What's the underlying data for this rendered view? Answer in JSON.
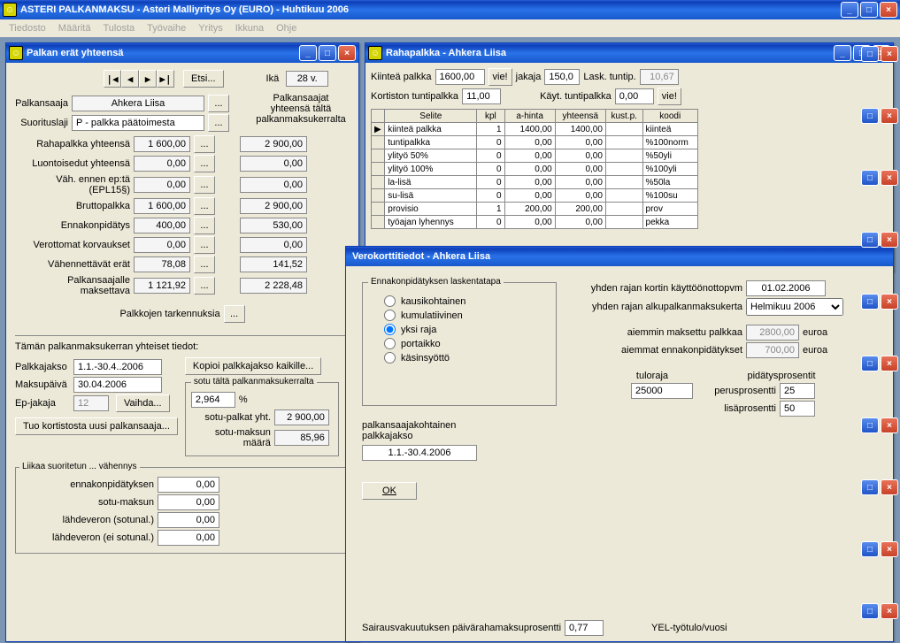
{
  "app": {
    "title": "ASTERI PALKANMAKSU - Asteri Malliyritys Oy (EURO) - Huhtikuu 2006",
    "menu": [
      "Tiedosto",
      "Määritä",
      "Tulosta",
      "Työvaihe",
      "Yritys",
      "Ikkuna",
      "Ohje"
    ]
  },
  "win1": {
    "title": "Palkan erät yhteensä",
    "etsi": "Etsi...",
    "ika_label": "Ikä",
    "ika_value": "28 v.",
    "palkansaaja_label": "Palkansaaja",
    "palkansaaja_value": "Ahkera Liisa",
    "suorituslaji_label": "Suorituslaji",
    "suorituslaji_value": "P    - palkka päätoimesta",
    "col2_header1": "Palkansaajat",
    "col2_header2": "yhteensä tältä",
    "col2_header3": "palkanmaksukerralta",
    "rows": [
      {
        "label": "Rahapalkka yhteensä",
        "v1": "1 600,00",
        "v2": "2 900,00"
      },
      {
        "label": "Luontoisedut yhteensä",
        "v1": "0,00",
        "v2": "0,00"
      },
      {
        "label": "Väh. ennen ep:tä (EPL15§)",
        "v1": "0,00",
        "v2": "0,00"
      },
      {
        "label": "Bruttopalkka",
        "v1": "1 600,00",
        "v2": "2 900,00"
      },
      {
        "label": "Ennakonpidätys",
        "v1": "400,00",
        "v2": "530,00"
      },
      {
        "label": "Verottomat korvaukset",
        "v1": "0,00",
        "v2": "0,00"
      },
      {
        "label": "Vähennettävät erät",
        "v1": "78,08",
        "v2": "141,52"
      },
      {
        "label": "Palkansaajalle maksettava",
        "v1": "1 121,92",
        "v2": "2 228,48"
      }
    ],
    "palkkojen_tarkennuksia": "Palkkojen tarkennuksia",
    "taman_header": "Tämän palkanmaksukerran yhteiset tiedot:",
    "palkkajakso_label": "Palkkajakso",
    "palkkajakso_value": "1.1.-30.4..2006",
    "kopioi": "Kopioi palkkajakso kaikille...",
    "maksupaiva_label": "Maksupäivä",
    "maksupaiva_value": "30.04.2006",
    "epjakaja_label": "Ep-jakaja",
    "epjakaja_value": "12",
    "vaihda": "Vaihda...",
    "tuo_kortistosta": "Tuo kortistosta uusi palkansaaja...",
    "sotu_group_title": "sotu tältä palkanmaksukerralta",
    "sotu_pct": "2,964",
    "pct_sign": "%",
    "sotu_palkat_label": "sotu-palkat yht.",
    "sotu_palkat_value": "2 900,00",
    "sotu_maksun_label": "sotu-maksun määrä",
    "sotu_maksun_value": "85,96",
    "liikaa_title": "Liikaa suoritetun ... vähennys",
    "liikaa_rows": [
      {
        "label": "ennakonpidätyksen",
        "v": "0,00"
      },
      {
        "label": "sotu-maksun",
        "v": "0,00"
      },
      {
        "label": "lähdeveron (sotunal.)",
        "v": "0,00"
      },
      {
        "label": "lähdeveron (ei sotunal.)",
        "v": "0,00"
      }
    ]
  },
  "win2": {
    "title": "Rahapalkka - Ahkera Liisa",
    "kiintea_label": "Kiinteä palkka",
    "kiintea_value": "1600,00",
    "vie": "vie!",
    "jakaja_label": "jakaja",
    "jakaja_value": "150,0",
    "lask_label": "Lask. tuntip.",
    "lask_value": "10,67",
    "kortiston_label": "Kortiston tuntipalkka",
    "kortiston_value": "11,00",
    "kayt_label": "Käyt. tuntipalkka",
    "kayt_value": "0,00",
    "headers": [
      "Selite",
      "kpl",
      "a-hinta",
      "yhteensä",
      "kust.p.",
      "koodi"
    ],
    "rows": [
      {
        "selite": "kiinteä palkka",
        "kpl": "1",
        "ah": "1400,00",
        "yht": "1400,00",
        "kp": "",
        "koodi": "kiinteä",
        "sel": true
      },
      {
        "selite": "tuntipalkka",
        "kpl": "0",
        "ah": "0,00",
        "yht": "0,00",
        "kp": "",
        "koodi": "%100norm"
      },
      {
        "selite": "ylityö 50%",
        "kpl": "0",
        "ah": "0,00",
        "yht": "0,00",
        "kp": "",
        "koodi": "%50yli"
      },
      {
        "selite": "ylityö 100%",
        "kpl": "0",
        "ah": "0,00",
        "yht": "0,00",
        "kp": "",
        "koodi": "%100yli"
      },
      {
        "selite": "la-lisä",
        "kpl": "0",
        "ah": "0,00",
        "yht": "0,00",
        "kp": "",
        "koodi": "%50la"
      },
      {
        "selite": "su-lisä",
        "kpl": "0",
        "ah": "0,00",
        "yht": "0,00",
        "kp": "",
        "koodi": "%100su"
      },
      {
        "selite": "provisio",
        "kpl": "1",
        "ah": "200,00",
        "yht": "200,00",
        "kp": "",
        "koodi": "prov"
      },
      {
        "selite": "työajan lyhennys",
        "kpl": "0",
        "ah": "0,00",
        "yht": "0,00",
        "kp": "",
        "koodi": "pekka"
      }
    ]
  },
  "win3": {
    "title": "Verokorttitiedot - Ahkera Liisa",
    "laskenta_title": "Ennakonpidätyksen laskentatapa",
    "radios": [
      "kausikohtainen",
      "kumulatiivinen",
      "yksi raja",
      "portaikko",
      "käsinsyöttö"
    ],
    "radio_selected": 2,
    "palkkajakso_label1": "palkansaajakohtainen",
    "palkkajakso_label2": "palkkajakso",
    "palkkajakso_value": "1.1.-30.4.2006",
    "ok": "OK",
    "yhden_rajan_label": "yhden rajan kortin käyttöönottopvm",
    "yhden_rajan_value": "01.02.2006",
    "alku_label": "yhden rajan alkupalkanmaksukerta",
    "alku_value": "Helmikuu 2006",
    "aiemmin_label": "aiemmin maksettu palkkaa",
    "aiemmin_value": "2800,00",
    "euroa": "euroa",
    "aiemmat_label": "aiemmat ennakonpidätykset",
    "aiemmat_value": "700,00",
    "tuloraja_label": "tuloraja",
    "tuloraja_value": "25000",
    "pidatys_label": "pidätysprosentit",
    "perus_label": "perusprosentti",
    "perus_value": "25",
    "lisa_label": "lisäprosentti",
    "lisa_value": "50",
    "sairaus_label": "Sairausvakuutuksen päivärahamaksuprosentti",
    "sairaus_value": "0,77",
    "yel_label": "YEL-työtulo/vuosi"
  }
}
